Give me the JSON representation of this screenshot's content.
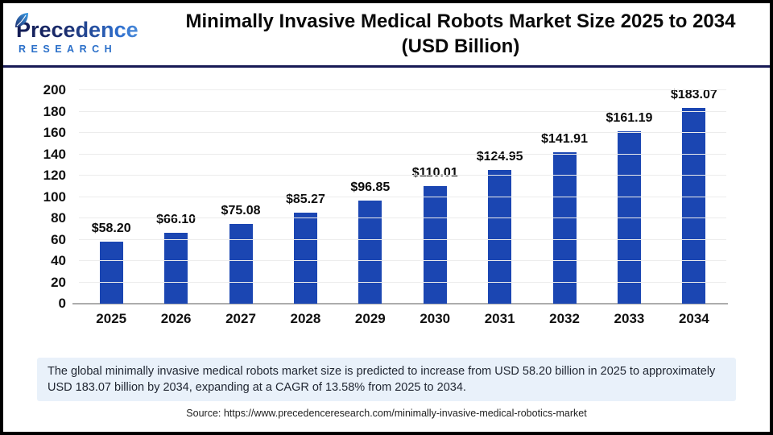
{
  "logo": {
    "brand_name": "Precedence",
    "brand_subtitle": "RESEARCH"
  },
  "header": {
    "title_line1": "Minimally Invasive Medical Robots Market Size 2025 to 2034",
    "title_line2": "(USD Billion)"
  },
  "chart_data": {
    "type": "bar",
    "title": "Minimally Invasive Medical Robots Market Size 2025 to 2034 (USD Billion)",
    "categories": [
      "2025",
      "2026",
      "2027",
      "2028",
      "2029",
      "2030",
      "2031",
      "2032",
      "2033",
      "2034"
    ],
    "values": [
      58.2,
      66.1,
      75.08,
      85.27,
      96.85,
      110.01,
      124.95,
      141.91,
      161.19,
      183.07
    ],
    "value_labels": [
      "$58.20",
      "$66.10",
      "$75.08",
      "$85.27",
      "$96.85",
      "$110.01",
      "$124.95",
      "$141.91",
      "$161.19",
      "$183.07"
    ],
    "xlabel": "",
    "ylabel": "",
    "ylim": [
      0,
      200
    ],
    "ytick_step": 20,
    "grid": true,
    "legend": false,
    "bar_color": "#1b46b2"
  },
  "summary": {
    "text": "The global minimally invasive medical robots market size is predicted to increase from USD 58.20 billion in 2025 to approximately USD 183.07 billion by 2034, expanding at a CAGR of 13.58% from 2025 to 2034."
  },
  "source": {
    "text": "Source: https://www.precedenceresearch.com/minimally-invasive-medical-robotics-market"
  },
  "colors": {
    "bar": "#1b46b2",
    "separator": "#171a55",
    "gridline": "#ececec",
    "axis_line": "#adadad",
    "summary_background": "#e9f1fa",
    "logo_navy": "#1b2d6e",
    "logo_blue": "#2f6fce"
  }
}
